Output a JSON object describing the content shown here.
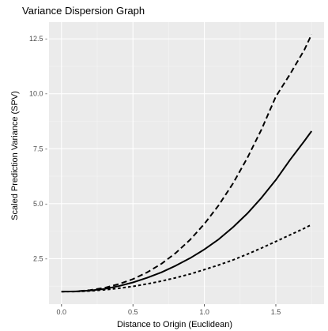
{
  "chart_data": {
    "type": "line",
    "title": "Variance Dispersion Graph",
    "xlabel": "Distance to Origin (Euclidean)",
    "ylabel": "Scaled Prediction Variance (SPV)",
    "xlim": [
      -0.0875,
      1.8375
    ],
    "ylim": [
      0.43,
      13.26
    ],
    "x_ticks": [
      0.0,
      0.5,
      1.0,
      1.5
    ],
    "x_tick_labels": [
      "0.0",
      "0.5",
      "1.0",
      "1.5"
    ],
    "y_ticks": [
      2.5,
      5.0,
      7.5,
      10.0,
      12.5
    ],
    "y_tick_labels": [
      "2.5 -",
      "5.0 -",
      "7.5 -",
      "10.0 -",
      "12.5 -"
    ],
    "grid": true,
    "legend": "none",
    "colors": {
      "panel": "#ebebeb",
      "grid_major": "#ffffff",
      "grid_minor": "#f5f5f5",
      "line": "#000000"
    },
    "series": [
      {
        "linestyle": "dashed",
        "x": [
          0.0,
          0.1,
          0.2,
          0.3,
          0.4,
          0.5,
          0.6,
          0.7,
          0.8,
          0.9,
          1.0,
          1.1,
          1.2,
          1.3,
          1.4,
          1.5,
          1.6,
          1.7,
          1.75
        ],
        "y": [
          1.0,
          1.01,
          1.07,
          1.17,
          1.34,
          1.57,
          1.88,
          2.27,
          2.76,
          3.36,
          4.08,
          4.93,
          5.92,
          7.07,
          8.38,
          9.87,
          10.9,
          12.0,
          12.7
        ]
      },
      {
        "linestyle": "solid",
        "x": [
          0.0,
          0.1,
          0.2,
          0.3,
          0.4,
          0.5,
          0.6,
          0.7,
          0.8,
          0.9,
          1.0,
          1.1,
          1.2,
          1.3,
          1.4,
          1.5,
          1.6,
          1.7,
          1.75
        ],
        "y": [
          1.0,
          1.01,
          1.05,
          1.12,
          1.25,
          1.42,
          1.63,
          1.88,
          2.18,
          2.52,
          2.92,
          3.38,
          3.93,
          4.55,
          5.27,
          6.08,
          7.0,
          7.85,
          8.3
        ]
      },
      {
        "linestyle": "dotted",
        "x": [
          0.0,
          0.1,
          0.2,
          0.3,
          0.4,
          0.5,
          0.6,
          0.7,
          0.8,
          0.9,
          1.0,
          1.1,
          1.2,
          1.3,
          1.4,
          1.5,
          1.6,
          1.7,
          1.75
        ],
        "y": [
          1.0,
          1.0,
          1.03,
          1.08,
          1.15,
          1.24,
          1.35,
          1.48,
          1.63,
          1.8,
          2.0,
          2.21,
          2.44,
          2.7,
          2.98,
          3.28,
          3.58,
          3.88,
          4.05
        ]
      }
    ]
  }
}
